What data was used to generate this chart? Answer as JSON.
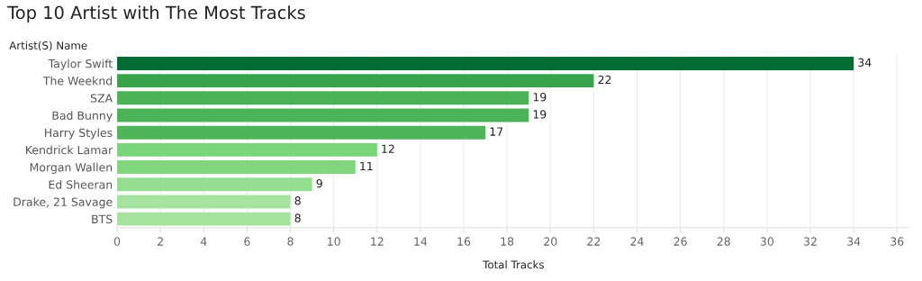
{
  "chart_data": {
    "type": "bar",
    "orientation": "horizontal",
    "title": "Top 10 Artist with The Most Tracks",
    "xlabel": "Total Tracks",
    "ylabel": "Artist(S) Name",
    "categories": [
      "Taylor Swift",
      "The Weeknd",
      "SZA",
      "Bad Bunny",
      "Harry Styles",
      "Kendrick Lamar",
      "Morgan Wallen",
      "Ed Sheeran",
      "Drake, 21 Savage",
      "BTS"
    ],
    "values": [
      34,
      22,
      19,
      19,
      17,
      12,
      11,
      9,
      8,
      8
    ],
    "colors": [
      "#006d34",
      "#39a34c",
      "#4cb257",
      "#4cb257",
      "#50b55a",
      "#7ad57a",
      "#7fd67d",
      "#95de91",
      "#a6e3a0",
      "#a6e3a0"
    ],
    "xlim": [
      0,
      36.6
    ],
    "xticks": [
      0,
      2,
      4,
      6,
      8,
      10,
      12,
      14,
      16,
      18,
      20,
      22,
      24,
      26,
      28,
      30,
      32,
      34,
      36
    ],
    "grid": "x",
    "data_labels": true
  }
}
